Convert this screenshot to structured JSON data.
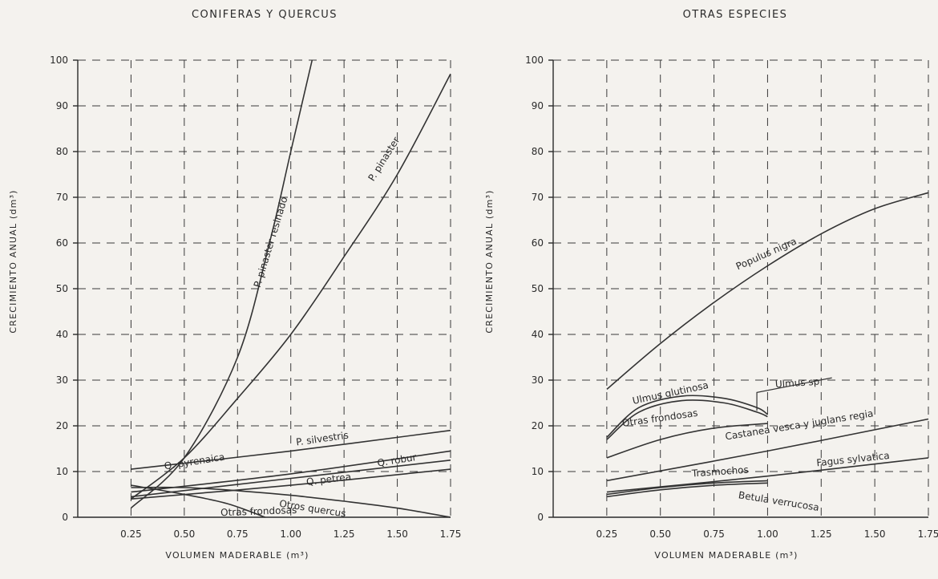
{
  "chart_data": [
    {
      "type": "line",
      "title": "CONIFERAS Y QUERCUS",
      "xlabel": "VOLUMEN MADERABLE (m³)",
      "ylabel": "CRECIMIENTO ANUAL (dm³)",
      "xlim": [
        0,
        1.75
      ],
      "ylim": [
        0,
        100
      ],
      "xticks": [
        0.25,
        0.5,
        0.75,
        1.0,
        1.25,
        1.5,
        1.75
      ],
      "xtick_labels": [
        "0.25",
        "0.50",
        "0.75",
        "1.00",
        "1.25",
        "1.50",
        "1.75"
      ],
      "yticks": [
        0,
        10,
        20,
        30,
        40,
        50,
        60,
        70,
        80,
        90,
        100
      ],
      "ytick_labels": [
        "0",
        "10",
        "20",
        "30",
        "40",
        "50",
        "60",
        "70",
        "80",
        "90",
        "100"
      ],
      "grid": true,
      "series": [
        {
          "name": "P. pinaster resinado",
          "x": [
            0.25,
            0.5,
            0.75,
            0.9,
            1.0,
            1.1
          ],
          "y": [
            2,
            13,
            35,
            60,
            80,
            100
          ]
        },
        {
          "name": "P. pinaster",
          "x": [
            0.25,
            0.5,
            0.75,
            1.0,
            1.25,
            1.5,
            1.75
          ],
          "y": [
            4,
            13,
            26,
            40,
            57,
            75,
            97
          ]
        },
        {
          "name": "P. silvestris",
          "x": [
            0.25,
            1.0,
            1.75
          ],
          "y": [
            10.5,
            14.5,
            19
          ]
        },
        {
          "name": "Q. robur",
          "x": [
            0.25,
            1.0,
            1.75
          ],
          "y": [
            5.5,
            9.5,
            14.5
          ]
        },
        {
          "name": "Q. pyrenaica",
          "x": [
            0.25,
            1.0,
            1.75
          ],
          "y": [
            4.5,
            8.5,
            12.5
          ]
        },
        {
          "name": "Q. petrea",
          "x": [
            0.25,
            1.0,
            1.75
          ],
          "y": [
            4,
            7,
            10.5
          ]
        },
        {
          "name": "Otros quercus",
          "x": [
            0.25,
            0.5,
            0.75,
            1.0,
            1.25,
            1.5,
            1.75
          ],
          "y": [
            6.5,
            6.5,
            5.8,
            4.8,
            3.5,
            2,
            0
          ]
        },
        {
          "name": "Otras frondosas",
          "x": [
            0.25,
            0.5,
            0.7,
            0.88
          ],
          "y": [
            7,
            5,
            3,
            0
          ]
        }
      ]
    },
    {
      "type": "line",
      "title": "OTRAS ESPECIES",
      "xlabel": "VOLUMEN MADERABLE (m³)",
      "ylabel": "CRECIMIENTO ANUAL (dm³)",
      "xlim": [
        0,
        1.75
      ],
      "ylim": [
        0,
        100
      ],
      "xticks": [
        0.25,
        0.5,
        0.75,
        1.0,
        1.25,
        1.5,
        1.75
      ],
      "xtick_labels": [
        "0.25",
        "0.50",
        "0.75",
        "1.00",
        "1.25",
        "1.50",
        "1.75"
      ],
      "yticks": [
        0,
        10,
        20,
        30,
        40,
        50,
        60,
        70,
        80,
        90,
        100
      ],
      "ytick_labels": [
        "0",
        "10",
        "20",
        "30",
        "40",
        "50",
        "60",
        "70",
        "80",
        "90",
        "100"
      ],
      "grid": true,
      "series": [
        {
          "name": "Populus nigra",
          "x": [
            0.25,
            0.5,
            0.75,
            1.0,
            1.25,
            1.5,
            1.75
          ],
          "y": [
            28,
            38,
            47,
            55,
            62,
            67.5,
            71
          ]
        },
        {
          "name": "Ulmus glutinosa",
          "x": [
            0.25,
            0.4,
            0.6,
            0.8,
            0.95,
            1.0
          ],
          "y": [
            17.5,
            24,
            26.5,
            26,
            24,
            22.5
          ]
        },
        {
          "name": "Ulmus sp",
          "x": [
            0.25,
            0.4,
            0.6,
            0.8,
            0.95,
            1.0
          ],
          "y": [
            17,
            23,
            25.5,
            25,
            23,
            22
          ]
        },
        {
          "name": "Otras frondosas",
          "x": [
            0.25,
            0.5,
            0.75,
            1.0
          ],
          "y": [
            13,
            17,
            19.5,
            20.5
          ]
        },
        {
          "name": "Castanea vesca y juglans regia",
          "x": [
            0.25,
            1.0,
            1.75
          ],
          "y": [
            8,
            14.5,
            21.5
          ]
        },
        {
          "name": "Fagus sylvatica",
          "x": [
            0.25,
            1.0,
            1.75
          ],
          "y": [
            5.5,
            9,
            13
          ]
        },
        {
          "name": "Trasmochos",
          "x": [
            0.25,
            0.5,
            0.75,
            1.0
          ],
          "y": [
            5,
            6.5,
            7.5,
            8
          ]
        },
        {
          "name": "Betula verrucosa",
          "x": [
            0.25,
            0.5,
            0.75,
            1.0
          ],
          "y": [
            4.5,
            6,
            7,
            7.5
          ]
        }
      ]
    }
  ]
}
